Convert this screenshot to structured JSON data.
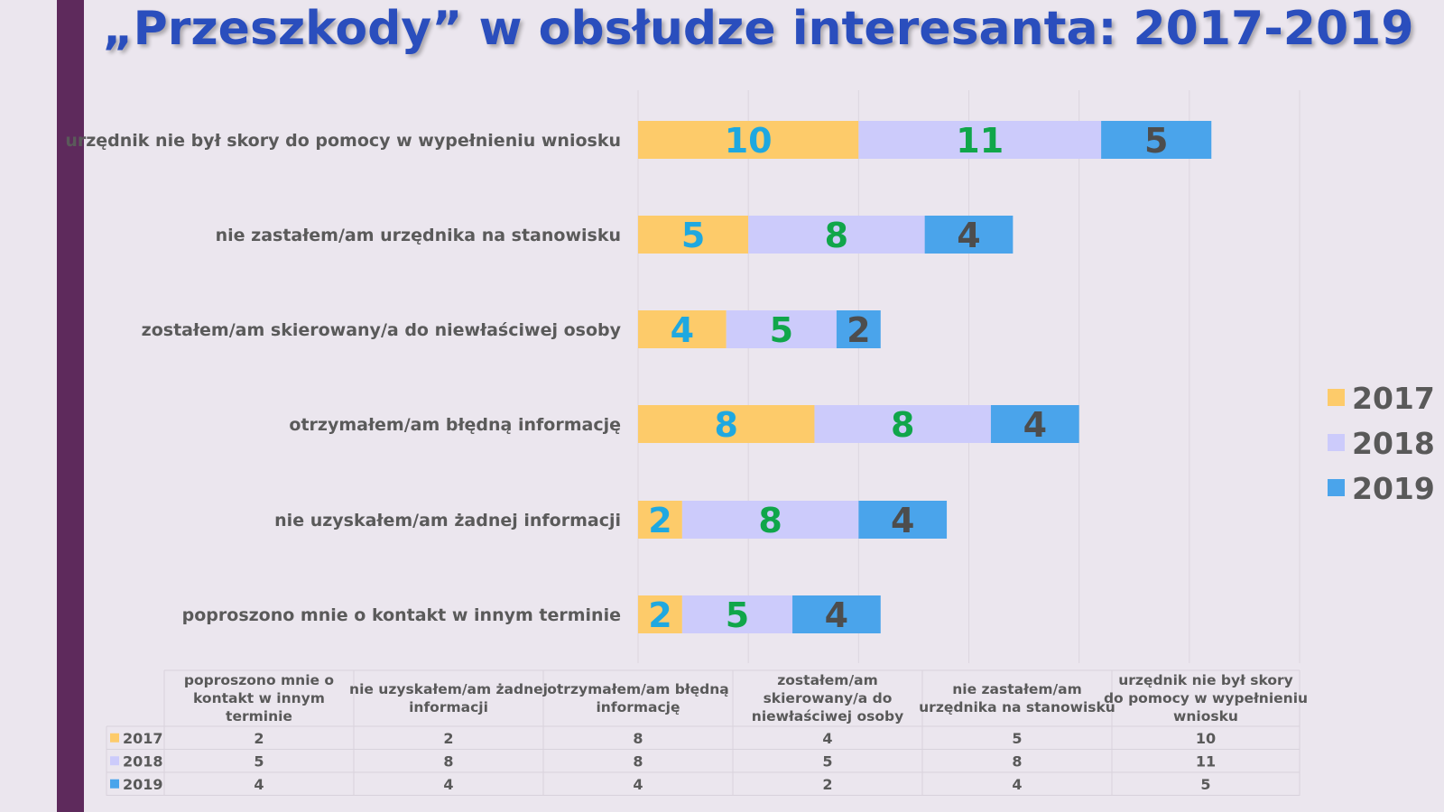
{
  "page": {
    "title": "„Przeszkody” w obsłudze interesanta: 2017-2019"
  },
  "colors": {
    "2017": "#fdcb6a",
    "2018": "#cccbfb",
    "2019": "#4aa4eb",
    "label_2017": "#1fa8e0",
    "label_2018": "#10a64a",
    "label_2019": "#4d4d4d",
    "sidebar": "#5e2a5c",
    "title": "#2a4ebd"
  },
  "chart_data": {
    "type": "bar",
    "orientation": "horizontal",
    "stacked": true,
    "title": "„Przeszkody” w obsłudze interesanta: 2017-2019",
    "categories": [
      "poproszono mnie o kontakt w innym terminie",
      "nie uzyskałem/am żadnej informacji",
      "otrzymałem/am błędną informację",
      "zostałem/am skierowany/a do niewłaściwej osoby",
      "nie zastałem/am urzędnika na stanowisku",
      "urzędnik nie był skory do pomocy w wypełnieniu wniosku"
    ],
    "series": [
      {
        "name": "2017",
        "values": [
          2,
          2,
          8,
          4,
          5,
          10
        ]
      },
      {
        "name": "2018",
        "values": [
          5,
          8,
          8,
          5,
          8,
          11
        ]
      },
      {
        "name": "2019",
        "values": [
          4,
          4,
          4,
          2,
          4,
          5
        ]
      }
    ],
    "xlim": [
      0,
      30
    ],
    "grid": true,
    "legend": "right",
    "data_table": true,
    "table_headers": [
      "poproszono mnie o kontakt w innym terminie",
      "nie uzyskałem/am żadnej informacji",
      "otrzymałem/am błędną informację",
      "zostałem/am skierowany/a do niewłaściwej osoby",
      "nie zastałem/am urzędnika na stanowisku",
      "urzędnik nie był skory do pomocy w wypełnieniu wniosku"
    ]
  }
}
